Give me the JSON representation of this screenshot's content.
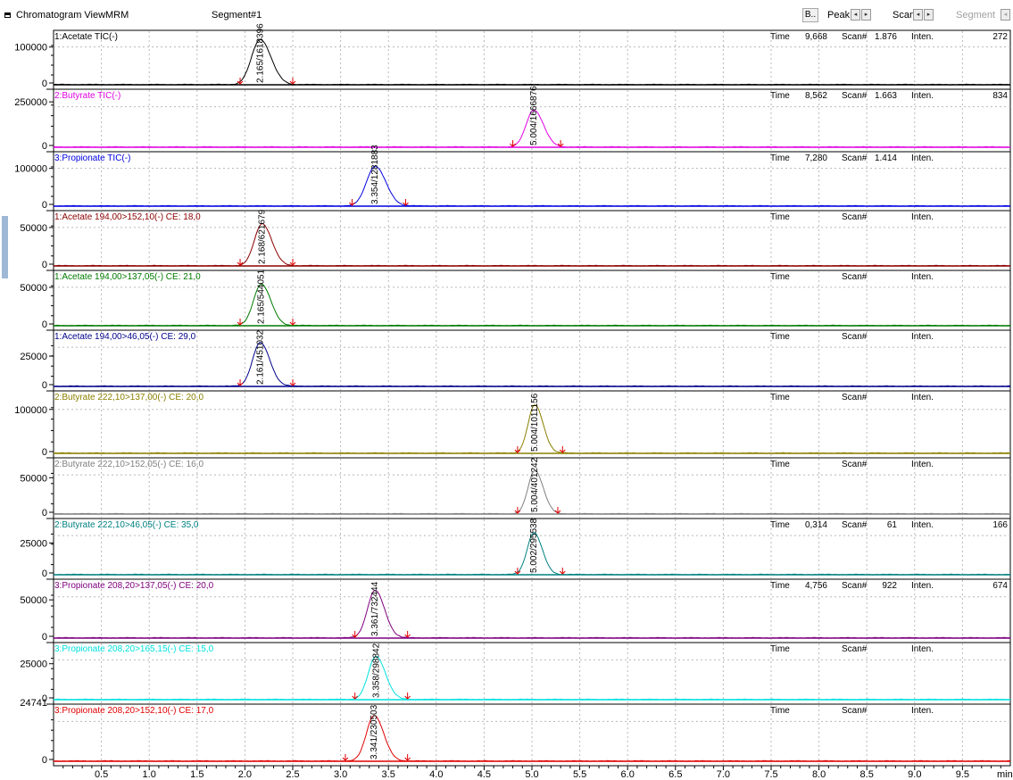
{
  "toolbar": {
    "title": "Chromatogram View",
    "mode": "MRM",
    "segment": "Segment#1",
    "b_button": "B..",
    "peak_label": "Peak",
    "scan_label": "Scan",
    "segment_nav_label": "Segment",
    "left_arrow": "◂",
    "right_arrow": "▸",
    "window_icon": "window-icon"
  },
  "chart_data": {
    "type": "line",
    "x_axis": {
      "label": "min",
      "range": [
        0.0,
        10.0
      ],
      "ticks": [
        "0.5",
        "1.0",
        "1.5",
        "2.0",
        "2.5",
        "3.0",
        "3.5",
        "4.0",
        "4.5",
        "5.0",
        "5.5",
        "6.0",
        "6.5",
        "7.0",
        "7.5",
        "8.0",
        "8.5",
        "9.0",
        "9.5"
      ]
    },
    "grid": true,
    "panels": [
      {
        "name": "1:Acetate TIC(-)",
        "color": "#000000",
        "yticks": [
          "100000",
          "0"
        ],
        "ymax": 130000,
        "peak_rt": 2.16,
        "peak_height": 120000,
        "peak_width": 0.09,
        "peak_label": "2.165/1618396",
        "start_marker": 1.95,
        "end_marker": 2.5,
        "baseline_marker_color": "#e00000",
        "readout": {
          "time_label": "Time",
          "time": "9,668",
          "scan_label": "Scan#",
          "scan": "1.876",
          "inten_label": "Inten.",
          "inten": "272"
        }
      },
      {
        "name": "2:Butyrate TIC(-)",
        "color": "#e000e0",
        "yticks": [
          "250000",
          "0"
        ],
        "ymax": 290000,
        "peak_rt": 5.02,
        "peak_height": 205000,
        "peak_width": 0.08,
        "peak_label": "5.004/1666876",
        "start_marker": 4.8,
        "end_marker": 5.3,
        "baseline_marker_color": "#e00000",
        "readout": {
          "time_label": "Time",
          "time": "8,562",
          "scan_label": "Scan#",
          "scan": "1.663",
          "inten_label": "Inten.",
          "inten": "834"
        }
      },
      {
        "name": "3:Propionate TIC(-)",
        "color": "#0000e0",
        "yticks": [
          "100000",
          "0"
        ],
        "ymax": 130000,
        "peak_rt": 3.36,
        "peak_height": 105000,
        "peak_width": 0.09,
        "peak_label": "3.354/1281883",
        "start_marker": 3.12,
        "end_marker": 3.68,
        "baseline_marker_color": "#e00000",
        "readout": {
          "time_label": "Time",
          "time": "7,280",
          "scan_label": "Scan#",
          "scan": "1.414",
          "inten_label": "Inten."
        }
      },
      {
        "name": "1:Acetate 194,00>152,10(-) CE: 18,0",
        "color": "#8b0000",
        "yticks": [
          "50000",
          "0"
        ],
        "ymax": 65000,
        "peak_rt": 2.18,
        "peak_height": 55000,
        "peak_width": 0.08,
        "peak_label": "2.168/621679",
        "start_marker": 1.95,
        "end_marker": 2.5,
        "baseline_marker_color": "#e00000",
        "readout": {
          "time_label": "Time",
          "scan_label": "Scan#",
          "inten_label": "Inten."
        }
      },
      {
        "name": "1:Acetate 194,00>137,05(-) CE: 21,0",
        "color": "#007a00",
        "yticks": [
          "50000",
          "0"
        ],
        "ymax": 65000,
        "peak_rt": 2.17,
        "peak_height": 54000,
        "peak_width": 0.08,
        "peak_label": "2.165/544051",
        "start_marker": 1.95,
        "end_marker": 2.5,
        "baseline_marker_color": "#e00000",
        "readout": {
          "time_label": "Time",
          "scan_label": "Scan#",
          "inten_label": "Inten."
        }
      },
      {
        "name": "1:Acetate 194,00>46,05(-) CE: 29,0",
        "color": "#00008b",
        "yticks": [
          "25000",
          "0"
        ],
        "ymax": 42000,
        "peak_rt": 2.16,
        "peak_height": 36000,
        "peak_width": 0.08,
        "peak_label": "2.161/451032",
        "start_marker": 1.95,
        "end_marker": 2.5,
        "baseline_marker_color": "#e00000",
        "readout": {
          "time_label": "Time",
          "scan_label": "Scan#",
          "inten_label": "Inten."
        }
      },
      {
        "name": "2:Butyrate 222,10>137,00(-) CE: 20,0",
        "color": "#8b8000",
        "yticks": [
          "100000",
          "0"
        ],
        "ymax": 130000,
        "peak_rt": 5.03,
        "peak_height": 110000,
        "peak_width": 0.07,
        "peak_label": "5.004/1011156",
        "start_marker": 4.85,
        "end_marker": 5.32,
        "baseline_marker_color": "#e00000",
        "readout": {
          "time_label": "Time",
          "scan_label": "Scan#",
          "inten_label": "Inten."
        }
      },
      {
        "name": "2:Butyrate 222,10>152,05(-) CE: 16,0",
        "color": "#808080",
        "yticks": [
          "50000",
          "0"
        ],
        "ymax": 70000,
        "peak_rt": 5.03,
        "peak_height": 60000,
        "peak_width": 0.07,
        "peak_label": "5.004/401242",
        "start_marker": 4.85,
        "end_marker": 5.27,
        "baseline_marker_color": "#e00000",
        "readout": {
          "time_label": "Time",
          "scan_label": "Scan#",
          "inten_label": "Inten."
        }
      },
      {
        "name": "2:Butyrate 222,10>46,05(-) CE: 35,0",
        "color": "#008080",
        "yticks": [
          "25000",
          "0"
        ],
        "ymax": 40000,
        "peak_rt": 5.02,
        "peak_height": 33000,
        "peak_width": 0.07,
        "peak_label": "5.002/295538",
        "start_marker": 4.85,
        "end_marker": 5.32,
        "baseline_marker_color": "#e00000",
        "readout": {
          "time_label": "Time",
          "time": "0,314",
          "scan_label": "Scan#",
          "scan": "61",
          "inten_label": "Inten.",
          "inten": "166"
        }
      },
      {
        "name": "3:Propionate 208,20>137,05(-) CE: 20,0",
        "color": "#800080",
        "yticks": [
          "50000",
          "0"
        ],
        "ymax": 70000,
        "peak_rt": 3.36,
        "peak_height": 62000,
        "peak_width": 0.08,
        "peak_label": "3.361/732444",
        "start_marker": 3.15,
        "end_marker": 3.7,
        "baseline_marker_color": "#e00000",
        "readout": {
          "time_label": "Time",
          "time": "4,756",
          "scan_label": "Scan#",
          "scan": "922",
          "inten_label": "Inten.",
          "inten": "674"
        }
      },
      {
        "name": "3:Propionate 208,20>165,15(-) CE: 15,0",
        "color": "#00e0e0",
        "yticks": [
          "25000",
          "0"
        ],
        "ymax": 36000,
        "peak_rt": 3.37,
        "peak_height": 30000,
        "peak_width": 0.08,
        "peak_label": "3.358/298842",
        "start_marker": 3.15,
        "end_marker": 3.7,
        "baseline_marker_color": "#e00000",
        "readout": {
          "time_label": "Time",
          "scan_label": "Scan#",
          "inten_label": "Inten."
        }
      },
      {
        "name": "3:Propionate 208,20>152,10(-) CE: 17,0",
        "color": "#e00000",
        "yticks": [
          "0"
        ],
        "top_tick_partial": "24741",
        "ymax": 62000,
        "peak_rt": 3.35,
        "peak_height": 55000,
        "peak_width": 0.08,
        "peak_label": "3.341/230503",
        "start_marker": 3.05,
        "end_marker": 3.7,
        "baseline_marker_color": "#e00000",
        "readout": {
          "time_label": "Time",
          "scan_label": "Scan#",
          "inten_label": "Inten."
        }
      }
    ]
  }
}
